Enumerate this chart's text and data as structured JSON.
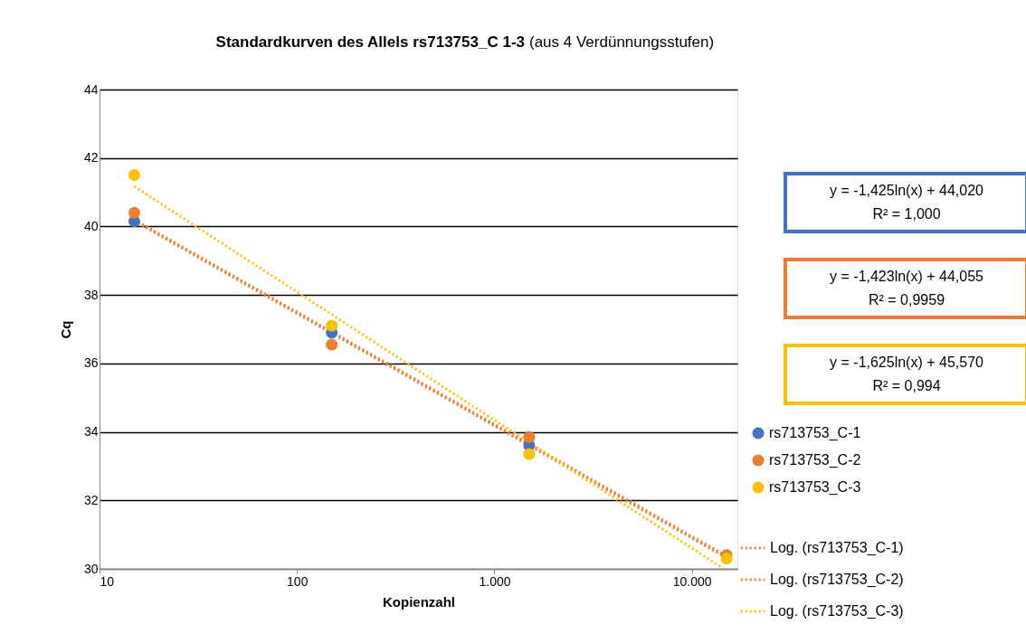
{
  "chart_data": {
    "type": "scatter",
    "title": "Standardkurven des Allels rs713753_C 1-3",
    "subtitle": "(aus 4 Verdünnungsstufen)",
    "xlabel": "Kopienzahl",
    "ylabel": "Cq",
    "log": "x",
    "grid": "y",
    "legend": "right",
    "xlim": [
      10,
      17000
    ],
    "xticks": [
      10,
      100,
      {
        "value": 1000,
        "label": "1.000"
      },
      {
        "value": 10000,
        "label": "10.000"
      }
    ],
    "ylim": [
      30,
      44
    ],
    "yticks": [
      30,
      32,
      34,
      36,
      38,
      40,
      42,
      44
    ],
    "series": [
      {
        "name": "rs713753_C-1",
        "color": "#4472c4",
        "x": [
          15,
          150,
          1500
        ],
        "values": [
          40.15,
          36.9,
          33.6
        ],
        "marker": "circle"
      },
      {
        "name": "rs713753_C-2",
        "color": "#ed7d31",
        "x": [
          15,
          150,
          1500,
          15000
        ],
        "values": [
          40.4,
          36.55,
          33.85,
          30.4
        ],
        "marker": "circle"
      },
      {
        "name": "rs713753_C-3",
        "color": "#ffc000",
        "x": [
          15,
          150,
          1500,
          15000
        ],
        "values": [
          41.5,
          37.1,
          33.35,
          30.3
        ],
        "marker": "circle"
      },
      {
        "name": "Log. (rs713753_C-1)",
        "type": "line",
        "line_style": "dotted",
        "marker": "none",
        "color": "#ed7d31",
        "x": [
          15,
          15000
        ],
        "values": [
          40.16,
          30.32
        ]
      },
      {
        "name": "Log. (rs713753_C-2)",
        "type": "line",
        "line_style": "dotted",
        "marker": "none",
        "color": "#ed7d31",
        "x": [
          15,
          15000
        ],
        "values": [
          40.2,
          30.37
        ]
      },
      {
        "name": "Log. (rs713753_C-3)",
        "type": "line",
        "line_style": "dotted",
        "marker": "none",
        "color": "#ffc000",
        "x": [
          15,
          14500
        ],
        "values": [
          41.17,
          30.0
        ]
      }
    ],
    "annotations": [
      "y = -1,425ln(x) + 44,020\nR² = 1,000",
      "y = -1,423ln(x) + 44,055\nR² = 0,9959",
      "y = -1,625ln(x) + 45,570\nR² = 0,994"
    ]
  }
}
